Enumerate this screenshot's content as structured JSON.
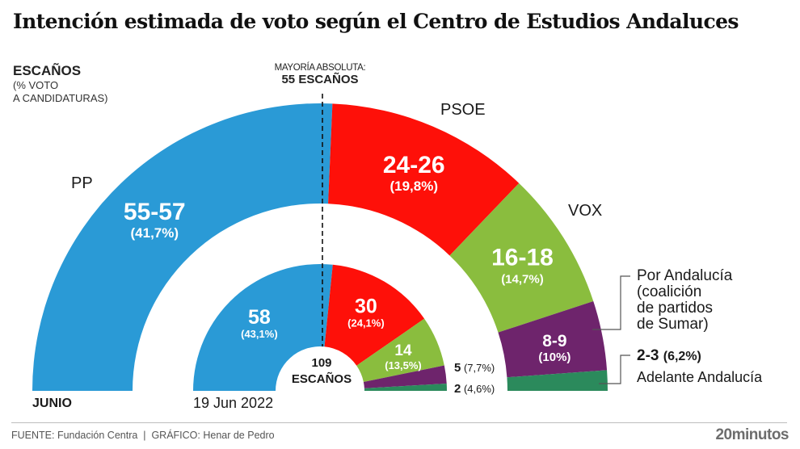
{
  "title": "Intención estimada de voto según el Centro de Estudios Andaluces",
  "legend_header": {
    "main": "ESCAÑOS",
    "sub_line1": "(% VOTO",
    "sub_line2": "A CANDIDATURAS)"
  },
  "majority": {
    "line1": "MAYORÍA ABSOLUTA:",
    "line2": "55 ESCAÑOS"
  },
  "footer": {
    "source": "FUENTE: Fundación Centra  |  GRÁFICO: Henar de Pedro",
    "brand": "20minutos"
  },
  "chart_data": {
    "type": "pie",
    "subtype": "parliament-semicircle",
    "title": "Intención estimada de voto según el Centro de Estudios Andaluces",
    "total_seats": 109,
    "total_label": "109",
    "total_unit": "ESCAÑOS",
    "majority_seats": 55,
    "rings": [
      {
        "name": "outer",
        "label": "JUNIO",
        "segments": [
          {
            "party": "PP",
            "seats_label": "55-57",
            "seats_mid": 56,
            "pct_label": "(41,7%)",
            "pct": 41.7,
            "color": "#2a9ad6"
          },
          {
            "party": "PSOE",
            "seats_label": "24-26",
            "seats_mid": 25,
            "pct_label": "(19,8%)",
            "pct": 19.8,
            "color": "#fe1009"
          },
          {
            "party": "VOX",
            "seats_label": "16-18",
            "seats_mid": 17,
            "pct_label": "(14,7%)",
            "pct": 14.7,
            "color": "#8abd3e"
          },
          {
            "party": "Por Andalucía",
            "seats_label": "8-9",
            "seats_mid": 8.5,
            "pct_label": "(10%)",
            "pct": 10,
            "color": "#6e246c"
          },
          {
            "party": "Adelante Andalucía",
            "seats_label": "2-3",
            "seats_mid": 2.5,
            "pct_label": "(6,2%)",
            "pct": 6.2,
            "color": "#2b8a5c"
          }
        ]
      },
      {
        "name": "inner",
        "label": "19 Jun 2022",
        "segments": [
          {
            "party": "PP",
            "seats_label": "58",
            "seats": 58,
            "pct_label": "(43,1%)",
            "pct": 43.1,
            "color": "#2a9ad6"
          },
          {
            "party": "PSOE",
            "seats_label": "30",
            "seats": 30,
            "pct_label": "(24,1%)",
            "pct": 24.1,
            "color": "#fe1009"
          },
          {
            "party": "VOX",
            "seats_label": "14",
            "seats": 14,
            "pct_label": "(13,5%)",
            "pct": 13.5,
            "color": "#8abd3e"
          },
          {
            "party": "Por Andalucía",
            "seats_label": "5",
            "seats": 5,
            "pct_label": "(7,7%)",
            "pct": 7.7,
            "color": "#6e246c"
          },
          {
            "party": "Adelante Andalucía",
            "seats_label": "2",
            "seats": 2,
            "pct_label": "(4,6%)",
            "pct": 4.6,
            "color": "#2b8a5c"
          }
        ]
      }
    ],
    "party_labels": {
      "pp": "PP",
      "psoe": "PSOE",
      "vox": "VOX",
      "pora_l1": "Por Andalucía",
      "pora_l2": "(coalición",
      "pora_l3": "de partidos",
      "pora_l4": "de Sumar)",
      "aa_seats": "2-3",
      "aa_pct": "(6,2%)",
      "aa_name": "Adelante Andalucía"
    }
  }
}
